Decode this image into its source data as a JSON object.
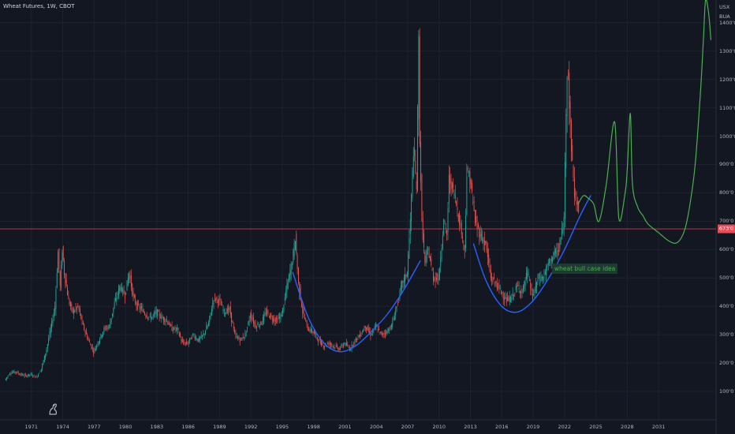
{
  "header": {
    "title": "Wheat Futures, 1W, CBOT"
  },
  "axis": {
    "unit_top": "USX",
    "unit_bottom": "BUA"
  },
  "price_label": "673'0",
  "annotation": "wheat bull case idea",
  "colors": {
    "background": "#131722",
    "grid": "#1e222d",
    "up": "#26a69a",
    "down": "#ef5350",
    "cup_curve": "#2962ff",
    "projection": "#4caf50",
    "price_line": "#e64d5a",
    "annotation_text": "#4caf50",
    "annotation_bg": "#1f3a33"
  },
  "chart_data": {
    "type": "line",
    "title": "Wheat Futures, 1W, CBOT",
    "xlabel": "",
    "ylabel": "USX",
    "xlim": [
      1968.0,
      2036.5
    ],
    "ylim": [
      0,
      1480
    ],
    "yticks": [
      "100'0",
      "200'0",
      "300'0",
      "400'0",
      "500'0",
      "600'0",
      "700'0",
      "800'0",
      "900'0",
      "1000'0",
      "1100'0",
      "1200'0",
      "1300'0",
      "1400'0"
    ],
    "ytick_values": [
      100,
      200,
      300,
      400,
      500,
      600,
      700,
      800,
      900,
      1000,
      1100,
      1200,
      1300,
      1400
    ],
    "xticks": [
      "1971",
      "1974",
      "1977",
      "1980",
      "1983",
      "1986",
      "1989",
      "1992",
      "1995",
      "1998",
      "2001",
      "2004",
      "2007",
      "2010",
      "2013",
      "2016",
      "2019",
      "2022",
      "2025",
      "2028",
      "2031"
    ],
    "xtick_values": [
      1971,
      1974,
      1977,
      1980,
      1983,
      1986,
      1989,
      1992,
      1995,
      1998,
      2001,
      2004,
      2007,
      2010,
      2013,
      2016,
      2019,
      2022,
      2025,
      2028,
      2031
    ],
    "grid": true,
    "horizontal_line": {
      "name": "current price",
      "value": 673,
      "label": "673'0"
    },
    "series": [
      {
        "kind": "price",
        "x": [
          1968.5,
          1969.0,
          1969.5,
          1970.0,
          1970.5,
          1971.0,
          1971.5,
          1972.0,
          1972.5,
          1973.0,
          1973.3,
          1973.6,
          1973.8,
          1974.0,
          1974.2,
          1974.6,
          1975.0,
          1975.5,
          1976.0,
          1976.5,
          1977.0,
          1977.5,
          1978.0,
          1978.5,
          1979.0,
          1979.5,
          1980.0,
          1980.4,
          1980.8,
          1981.2,
          1981.6,
          1982.0,
          1982.5,
          1983.0,
          1983.5,
          1984.0,
          1984.5,
          1985.0,
          1985.5,
          1986.0,
          1986.5,
          1987.0,
          1987.5,
          1988.0,
          1988.5,
          1989.0,
          1989.5,
          1990.0,
          1990.5,
          1991.0,
          1991.5,
          1992.0,
          1992.5,
          1993.0,
          1993.5,
          1994.0,
          1994.5,
          1995.0,
          1995.5,
          1996.0,
          1996.3,
          1996.6,
          1997.0,
          1997.5,
          1998.0,
          1998.5,
          1999.0,
          1999.5,
          2000.0,
          2000.5,
          2001.0,
          2001.5,
          2002.0,
          2002.5,
          2003.0,
          2003.5,
          2004.0,
          2004.5,
          2005.0,
          2005.5,
          2006.0,
          2006.5,
          2007.0,
          2007.3,
          2007.6,
          2007.9,
          2008.1,
          2008.2,
          2008.4,
          2008.7,
          2009.0,
          2009.5,
          2010.0,
          2010.5,
          2010.8,
          2011.0,
          2011.5,
          2012.0,
          2012.5,
          2012.7,
          2013.0,
          2013.5,
          2014.0,
          2014.5,
          2015.0,
          2015.5,
          2016.0,
          2016.5,
          2017.0,
          2017.5,
          2018.0,
          2018.5,
          2019.0,
          2019.5,
          2020.0,
          2020.5,
          2021.0,
          2021.5,
          2022.0,
          2022.2,
          2022.35,
          2022.5,
          2022.8,
          2023.0,
          2023.3
        ],
        "values": [
          140,
          165,
          170,
          160,
          155,
          160,
          150,
          180,
          250,
          340,
          400,
          590,
          470,
          600,
          520,
          420,
          380,
          400,
          330,
          280,
          240,
          280,
          320,
          330,
          410,
          470,
          440,
          520,
          430,
          400,
          390,
          370,
          360,
          380,
          360,
          350,
          320,
          320,
          270,
          270,
          300,
          280,
          300,
          340,
          430,
          420,
          380,
          390,
          300,
          280,
          300,
          370,
          330,
          340,
          380,
          360,
          350,
          370,
          470,
          560,
          640,
          480,
          380,
          320,
          310,
          280,
          260,
          270,
          260,
          250,
          270,
          250,
          280,
          300,
          330,
          300,
          330,
          300,
          310,
          330,
          400,
          480,
          520,
          700,
          950,
          820,
          1340,
          1000,
          700,
          550,
          600,
          500,
          500,
          700,
          650,
          850,
          800,
          700,
          600,
          870,
          850,
          700,
          650,
          620,
          500,
          480,
          450,
          420,
          430,
          470,
          450,
          520,
          430,
          500,
          500,
          550,
          580,
          600,
          700,
          1100,
          1300,
          1100,
          900,
          800,
          750
        ]
      },
      {
        "kind": "cup",
        "x": [
          1996.0,
          1997.5,
          1999.0,
          2000.5,
          2002.0,
          2003.5,
          2005.0,
          2006.5,
          2008.2
        ],
        "values": [
          520,
          360,
          270,
          240,
          260,
          310,
          370,
          450,
          560
        ]
      },
      {
        "kind": "cup",
        "x": [
          2013.3,
          2014.5,
          2016.0,
          2017.5,
          2019.0,
          2020.5,
          2022.0,
          2023.5,
          2024.5
        ],
        "values": [
          620,
          490,
          400,
          380,
          420,
          500,
          600,
          720,
          790
        ]
      },
      {
        "kind": "projection",
        "x": [
          2023.3,
          2023.8,
          2024.3,
          2024.8,
          2025.3,
          2026.0,
          2026.8,
          2027.2,
          2027.8,
          2028.0,
          2028.3,
          2028.5,
          2029.0,
          2029.5,
          2030.0,
          2031.0,
          2032.0,
          2032.8,
          2033.5,
          2034.0,
          2034.5,
          2035.0,
          2035.3,
          2035.5,
          2035.8,
          2036.0
        ],
        "values": [
          760,
          790,
          780,
          760,
          700,
          830,
          1050,
          710,
          800,
          880,
          1080,
          830,
          750,
          720,
          690,
          660,
          630,
          625,
          670,
          760,
          900,
          1150,
          1350,
          1480,
          1430,
          1340
        ]
      }
    ]
  }
}
